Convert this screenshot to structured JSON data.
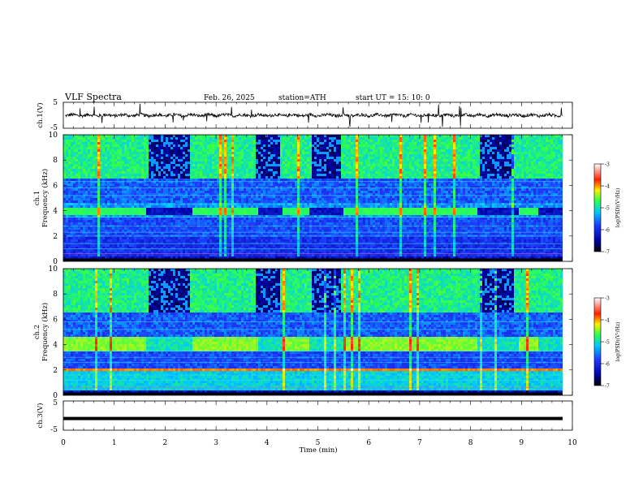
{
  "header": {
    "title": "VLF  Spectra",
    "date": "Feb. 26, 2025",
    "station": "station=ATH",
    "start": "start  UT  =   15: 10: 0"
  },
  "chart_data": [
    {
      "type": "line",
      "name": "ch1-waveform",
      "ylabel": "ch.1(V)",
      "ylim": [
        -5,
        5
      ],
      "yticks": [
        "5",
        "-5"
      ],
      "xlim": [
        0,
        10
      ]
    },
    {
      "type": "heatmap",
      "name": "ch1-spectrogram",
      "ylabel_line1": "ch.1",
      "ylabel_line2": "Frequency  (kHz)",
      "ylim": [
        0,
        10
      ],
      "yticks": [
        "0",
        "2",
        "4",
        "6",
        "8",
        "10"
      ],
      "xlim": [
        0,
        10
      ],
      "colorbar": {
        "label": "log(PSD)(V²/Hz)",
        "range": [
          -7,
          -3
        ],
        "ticks": [
          "-3",
          "-4",
          "-5",
          "-6",
          "-7"
        ]
      },
      "quiet_band_intervals_min": [
        [
          0,
          1.6
        ],
        [
          2.5,
          3.8
        ],
        [
          4.3,
          4.8
        ],
        [
          5.5,
          8.1
        ],
        [
          8.9,
          9.3
        ]
      ],
      "quiet_band_khz": [
        3.6,
        4.2
      ],
      "spherics_intervals_min": [
        [
          1.65,
          2.45
        ],
        [
          3.75,
          4.25
        ],
        [
          4.85,
          5.45
        ],
        [
          8.15,
          8.85
        ]
      ]
    },
    {
      "type": "heatmap",
      "name": "ch2-spectrogram",
      "ylabel_line1": "ch.2",
      "ylabel_line2": "Frequency  (kHz)",
      "ylim": [
        0,
        10
      ],
      "yticks": [
        "0",
        "2",
        "4",
        "6",
        "8",
        "10"
      ],
      "xlim": [
        0,
        10
      ],
      "colorbar": {
        "label": "log(PSD)(V²/Hz)",
        "range": [
          -7,
          -3
        ],
        "ticks": [
          "-3",
          "-4",
          "-5",
          "-6",
          "-7"
        ]
      },
      "hiss_band_khz": [
        3.4,
        4.6
      ],
      "strong_line_khz": 2.0
    },
    {
      "type": "line",
      "name": "ch3-waveform",
      "ylabel": "ch.3(V)",
      "ylim": [
        -5,
        5
      ],
      "yticks": [
        "5",
        "-5"
      ],
      "xlim": [
        0,
        10
      ],
      "level": -1
    }
  ],
  "x_axis": {
    "label": "Time  (min)",
    "ticks": [
      "0",
      "1",
      "2",
      "3",
      "4",
      "5",
      "6",
      "7",
      "8",
      "9",
      "10"
    ],
    "range": [
      0,
      10
    ]
  },
  "colors": {
    "background": "#ffffff",
    "axes": "#000000",
    "low": "#000000",
    "mid_blue": "#1d3cff",
    "cyan": "#00c8ff",
    "green": "#2cff4d",
    "yellow": "#ffee00",
    "red": "#ff0000"
  }
}
